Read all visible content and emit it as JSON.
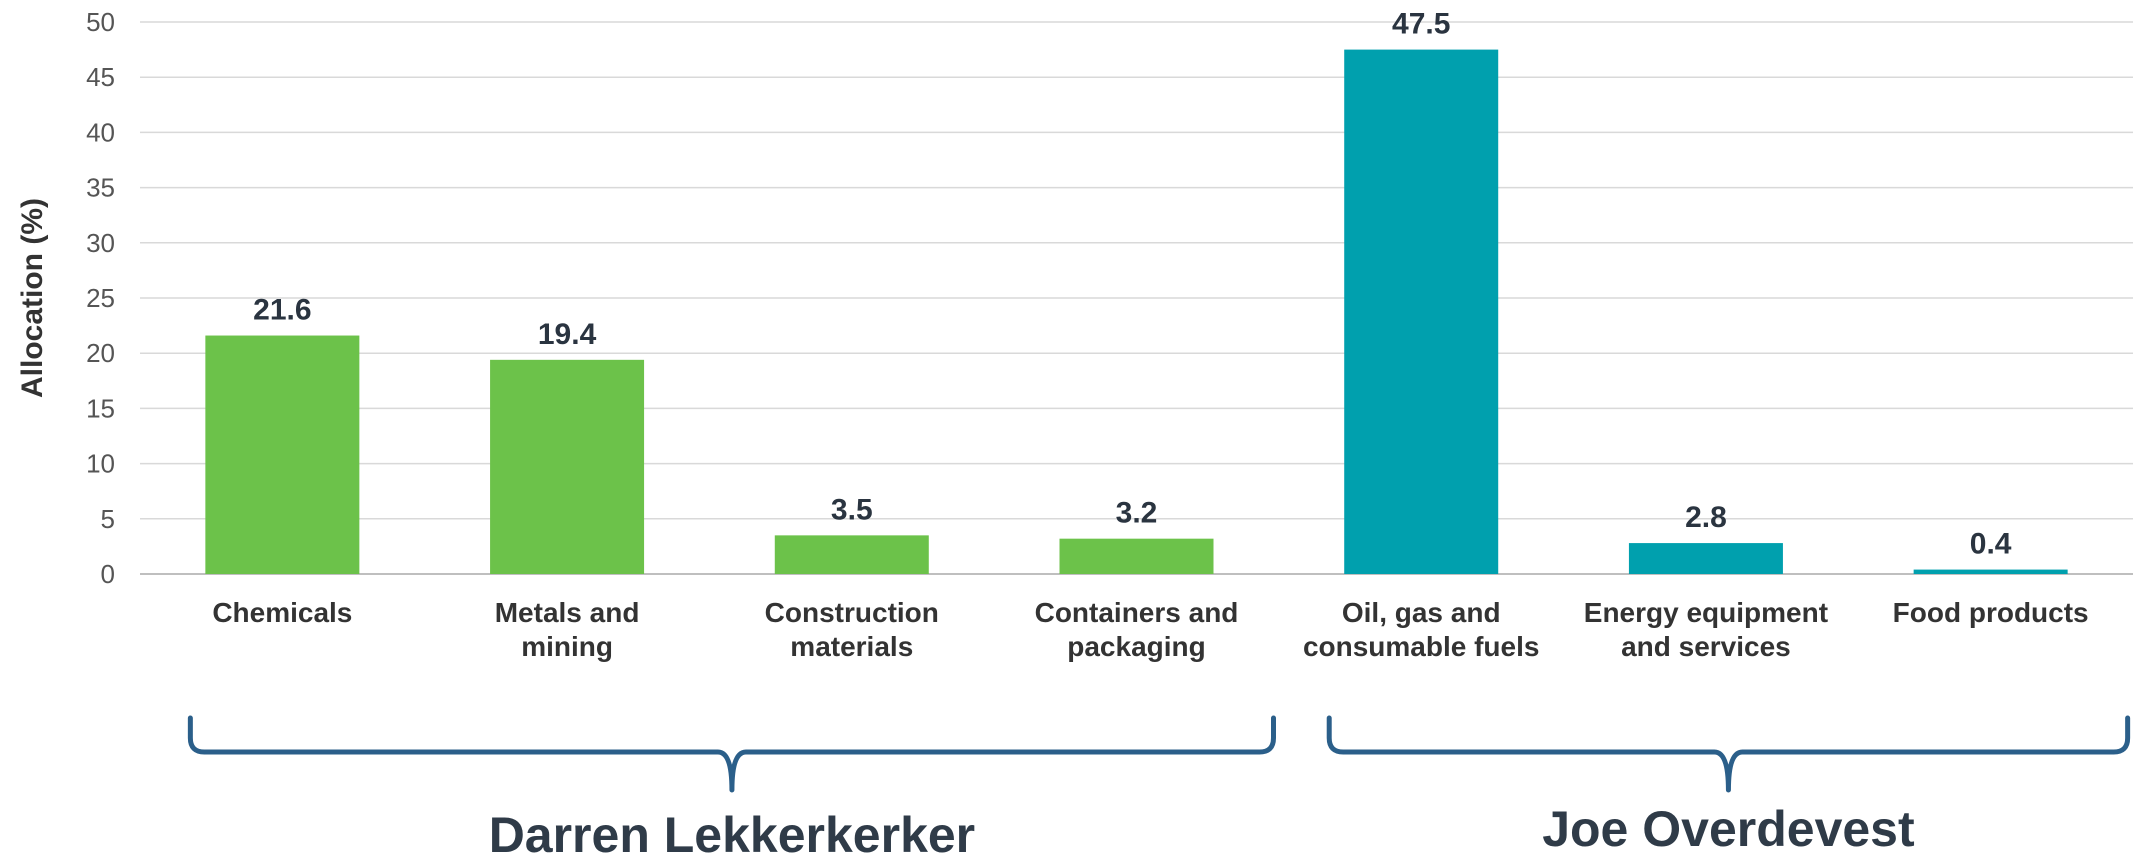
{
  "chart_data": {
    "type": "bar",
    "ylabel": "Allocation (%)",
    "xlabel": "",
    "ylim": [
      0,
      50
    ],
    "yticks": [
      0,
      5,
      10,
      15,
      20,
      25,
      30,
      35,
      40,
      45,
      50
    ],
    "grid": true,
    "categories": [
      [
        "Chemicals"
      ],
      [
        "Metals and",
        "mining"
      ],
      [
        "Construction",
        "materials"
      ],
      [
        "Containers and",
        "packaging"
      ],
      [
        "Oil, gas and",
        "consumable fuels"
      ],
      [
        "Energy equipment",
        "and services"
      ],
      [
        "Food products"
      ]
    ],
    "values": [
      21.6,
      19.4,
      3.5,
      3.2,
      47.5,
      2.8,
      0.4
    ],
    "value_labels": [
      "21.6",
      "19.4",
      "3.5",
      "3.2",
      "47.5",
      "2.8",
      "0.4"
    ],
    "bar_colors": [
      "#6cc24a",
      "#6cc24a",
      "#6cc24a",
      "#6cc24a",
      "#00a0ae",
      "#00a0ae",
      "#00a0ae"
    ],
    "groups": [
      {
        "label": "Darren Lekkerkerker",
        "from": 0,
        "to": 3
      },
      {
        "label": "Joe Overdevest",
        "from": 4,
        "to": 6
      }
    ],
    "colors": {
      "grid": "#d9d9d9",
      "axis": "#bfbfbf",
      "bracket": "#2b5f8a"
    }
  }
}
